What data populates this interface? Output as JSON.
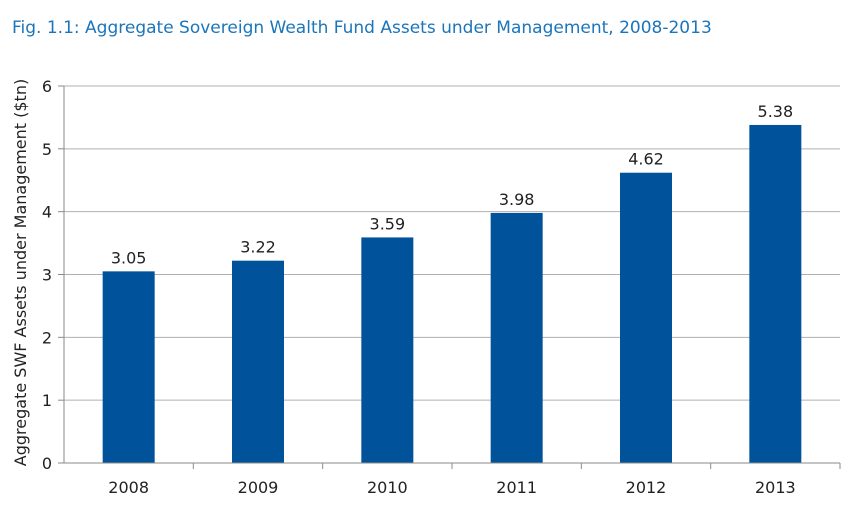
{
  "figure": {
    "title": "Fig. 1.1: Aggregate Sovereign Wealth Fund Assets under Management, 2008-2013"
  },
  "chart_data": {
    "type": "bar",
    "categories": [
      "2008",
      "2009",
      "2010",
      "2011",
      "2012",
      "2013"
    ],
    "values": [
      3.05,
      3.22,
      3.59,
      3.98,
      4.62,
      5.38
    ],
    "data_labels": [
      "3.05",
      "3.22",
      "3.59",
      "3.98",
      "4.62",
      "5.38"
    ],
    "title": "Fig. 1.1: Aggregate Sovereign Wealth Fund Assets under Management, 2008-2013",
    "xlabel": "",
    "ylabel": "Aggregate SWF Assets under Management ($tn)",
    "ylim": [
      0,
      6
    ],
    "yticks": [
      "0",
      "1",
      "2",
      "3",
      "4",
      "5",
      "6"
    ],
    "grid": true,
    "bar_color": "#00539b",
    "grid_color": "#b0b0b0"
  }
}
